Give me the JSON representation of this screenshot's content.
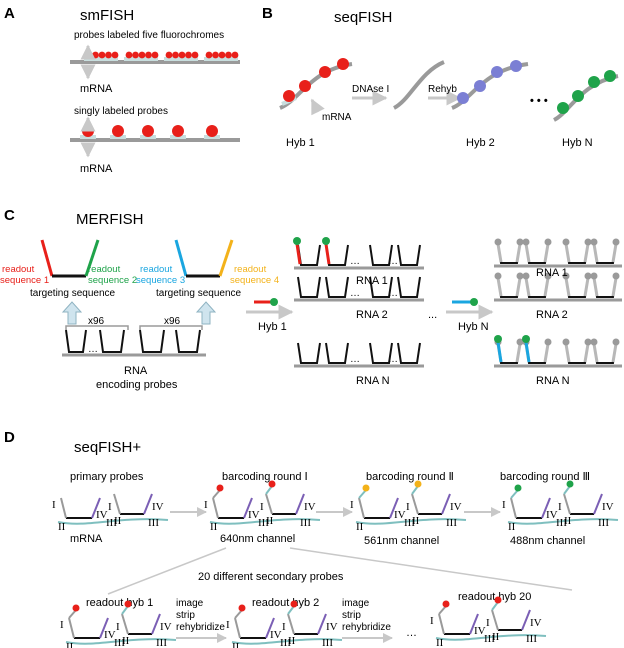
{
  "colors": {
    "red": "#e8201a",
    "green": "#1fa34a",
    "blue": "#7b7fd4",
    "cyan": "#1aa6e0",
    "orange": "#f3b21a",
    "purple": "#7b5fb5",
    "teal": "#7fbfbf",
    "gray": "#9a9a9a",
    "arrow": "#c8c8c8",
    "dark": "#111111"
  },
  "panel_a": {
    "label": "A",
    "title": "smFISH",
    "probes_five": "probes labeled five fluorochromes",
    "mrna_1": "mRNA",
    "singly": "singly labeled probes",
    "mrna_2": "mRNA"
  },
  "panel_b": {
    "label": "B",
    "title": "seqFISH",
    "mrna": "mRNA",
    "dnase": "DNAse I",
    "rehyb": "Rehyb",
    "dots": "• • •",
    "hyb1": "Hyb 1",
    "hyb2": "Hyb 2",
    "hybn": "Hyb N"
  },
  "panel_c": {
    "label": "C",
    "title": "MERFISH",
    "readout1_a": "readout",
    "readout1_b": "sequence 1",
    "readout2_a": "readout",
    "readout2_b": "sequence 2",
    "readout3_a": "readout",
    "readout3_b": "sequence 3",
    "readout4_a": "readout",
    "readout4_b": "sequence 4",
    "targeting1": "targeting sequence",
    "targeting2": "targeting sequence",
    "x96_1": "x96",
    "x96_2": "x96",
    "rna": "RNA",
    "encoding": "encoding probes",
    "hyb1": "Hyb 1",
    "hybn": "Hyb N",
    "rna1_a": "RNA 1",
    "rna2_a": "RNA 2",
    "rnan_a": "RNA N",
    "rna1_b": "RNA 1",
    "rna2_b": "RNA 2",
    "rnan_b": "RNA N",
    "dots_mid": "…",
    "ellipsis": "..."
  },
  "panel_d": {
    "label": "D",
    "title": "seqFISH+",
    "primary": "primary probes",
    "mrna": "mRNA",
    "round1": "barcoding round Ⅰ",
    "round2": "barcoding round Ⅱ",
    "round3": "barcoding round Ⅲ",
    "ch640": "640nm channel",
    "ch561": "561nm channel",
    "ch488": "488nm channel",
    "secondary": "20 different secondary probes",
    "readout1": "readout hyb 1",
    "readout2": "readout hyb 2",
    "readout20": "readout hyb 20",
    "image": "image",
    "strip": "strip",
    "rehybridize": "rehybridize",
    "image_2": "image",
    "strip_2": "strip",
    "rehybridize_2": "rehybridize",
    "dots": "…",
    "roman_1": "I",
    "roman_2": "II",
    "roman_3": "III",
    "roman_4": "IV"
  }
}
